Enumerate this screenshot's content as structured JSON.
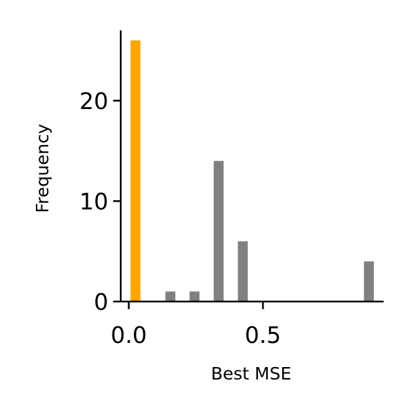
{
  "chart_data": {
    "type": "bar",
    "title": "",
    "xlabel": "Best MSE",
    "ylabel": "Frequency",
    "xlim": [
      -0.03,
      0.95
    ],
    "ylim": [
      0,
      27
    ],
    "x_ticks": [
      0.0,
      0.5
    ],
    "x_tick_labels": [
      "0.0",
      "0.5"
    ],
    "y_ticks": [
      0,
      10,
      20
    ],
    "y_tick_labels": [
      "0",
      "10",
      "20"
    ],
    "bar_width": 0.037,
    "grid": false,
    "legend": "none",
    "bars": [
      {
        "x": 0.025,
        "value": 26,
        "color": "#ffa500"
      },
      {
        "x": 0.155,
        "value": 1,
        "color": "#808080"
      },
      {
        "x": 0.245,
        "value": 1,
        "color": "#808080"
      },
      {
        "x": 0.335,
        "value": 14,
        "color": "#808080"
      },
      {
        "x": 0.425,
        "value": 6,
        "color": "#808080"
      },
      {
        "x": 0.895,
        "value": 4,
        "color": "#808080"
      }
    ]
  }
}
